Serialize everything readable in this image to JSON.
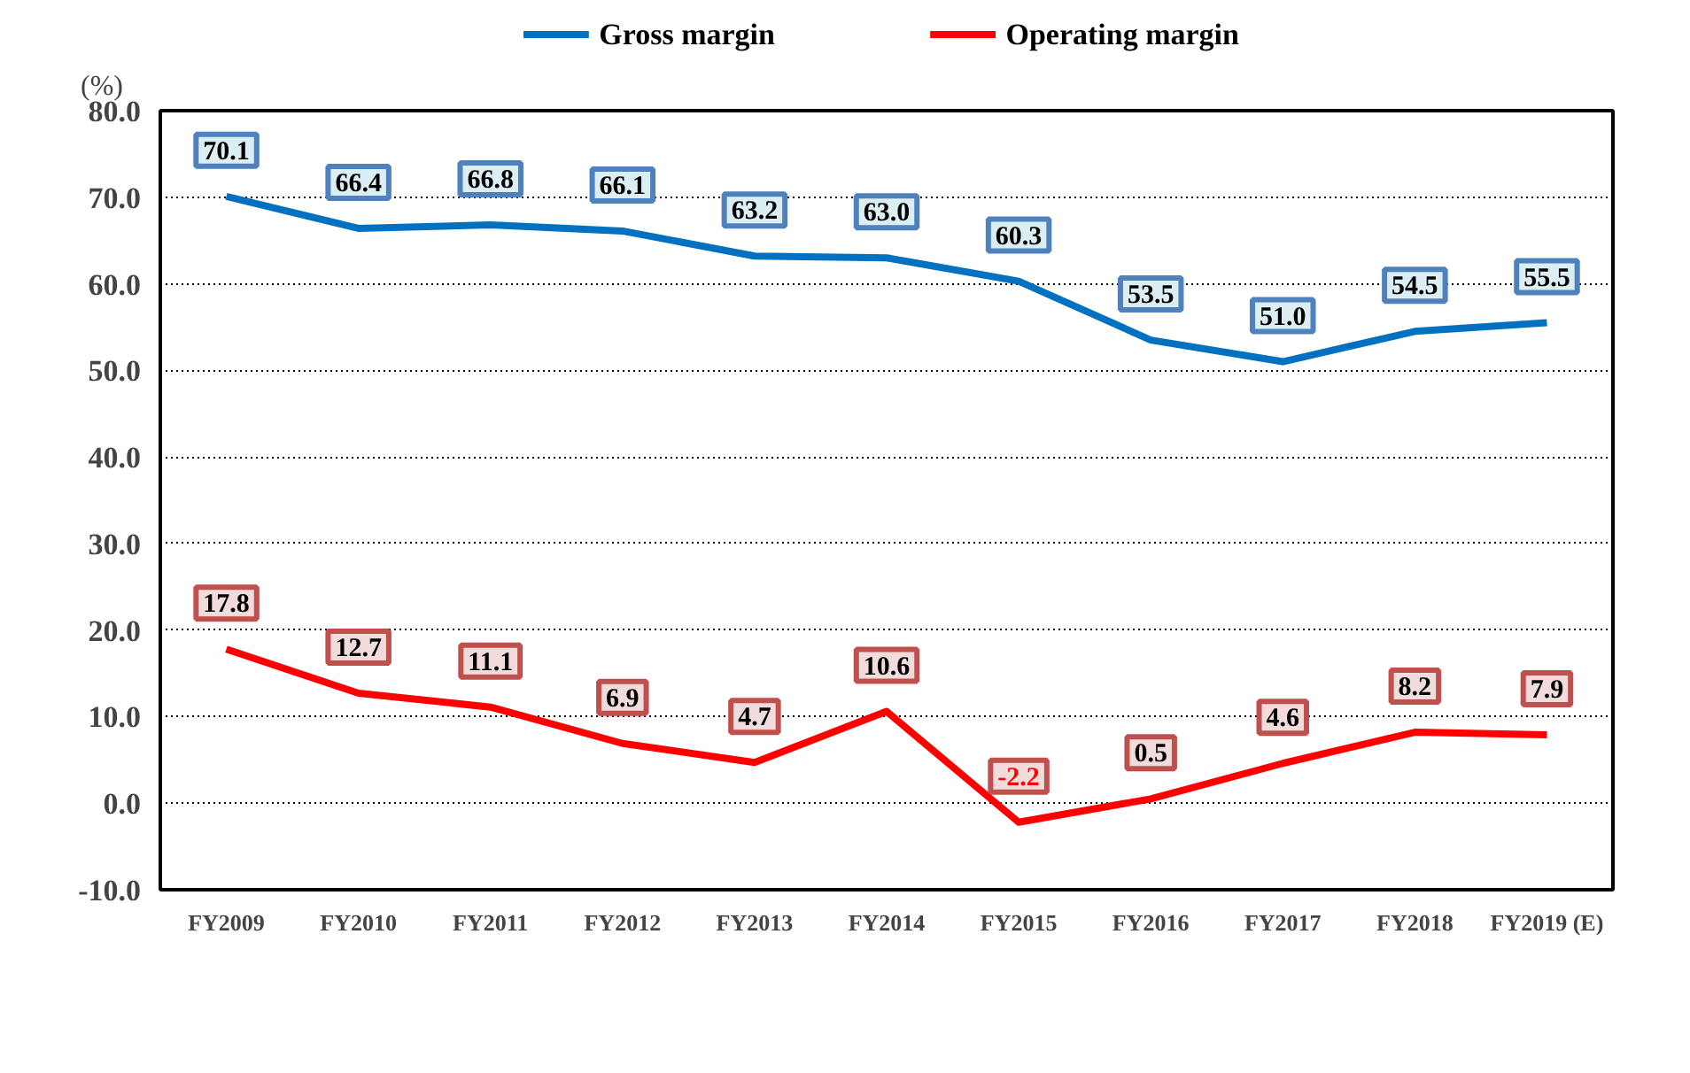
{
  "chart_data": {
    "type": "line",
    "ylabel": "(%)",
    "categories": [
      "FY2009",
      "FY2010",
      "FY2011",
      "FY2012",
      "FY2013",
      "FY2014",
      "FY2015",
      "FY2016",
      "FY2017",
      "FY2018",
      "FY2019 (E)"
    ],
    "series": [
      {
        "name": "Gross margin",
        "color": "#0070c0",
        "values": [
          70.1,
          66.4,
          66.8,
          66.1,
          63.2,
          63.0,
          60.3,
          53.5,
          51.0,
          54.5,
          55.5
        ],
        "value_labels": [
          "70.1",
          "66.4",
          "66.8",
          "66.1",
          "63.2",
          "63.0",
          "60.3",
          "53.5",
          "51.0",
          "54.5",
          "55.5"
        ]
      },
      {
        "name": "Operating margin",
        "color": "#ff0000",
        "values": [
          17.8,
          12.7,
          11.1,
          6.9,
          4.7,
          10.6,
          -2.2,
          0.5,
          4.6,
          8.2,
          7.9
        ],
        "value_labels": [
          "17.8",
          "12.7",
          "11.1",
          "6.9",
          "4.7",
          "10.6",
          "-2.2",
          "0.5",
          "4.6",
          "8.2",
          "7.9"
        ]
      }
    ],
    "ylim": [
      -10,
      80
    ],
    "yticks": [
      {
        "value": -10,
        "label": "-10.0"
      },
      {
        "value": 0,
        "label": "0.0"
      },
      {
        "value": 10,
        "label": "10.0"
      },
      {
        "value": 20,
        "label": "20.0"
      },
      {
        "value": 30,
        "label": "30.0"
      },
      {
        "value": 40,
        "label": "40.0"
      },
      {
        "value": 50,
        "label": "50.0"
      },
      {
        "value": 60,
        "label": "60.0"
      },
      {
        "value": 70,
        "label": "70.0"
      },
      {
        "value": 80,
        "label": "80.0"
      }
    ],
    "grid": "y",
    "legend": "top",
    "marker": "none",
    "line_style": "solid"
  }
}
